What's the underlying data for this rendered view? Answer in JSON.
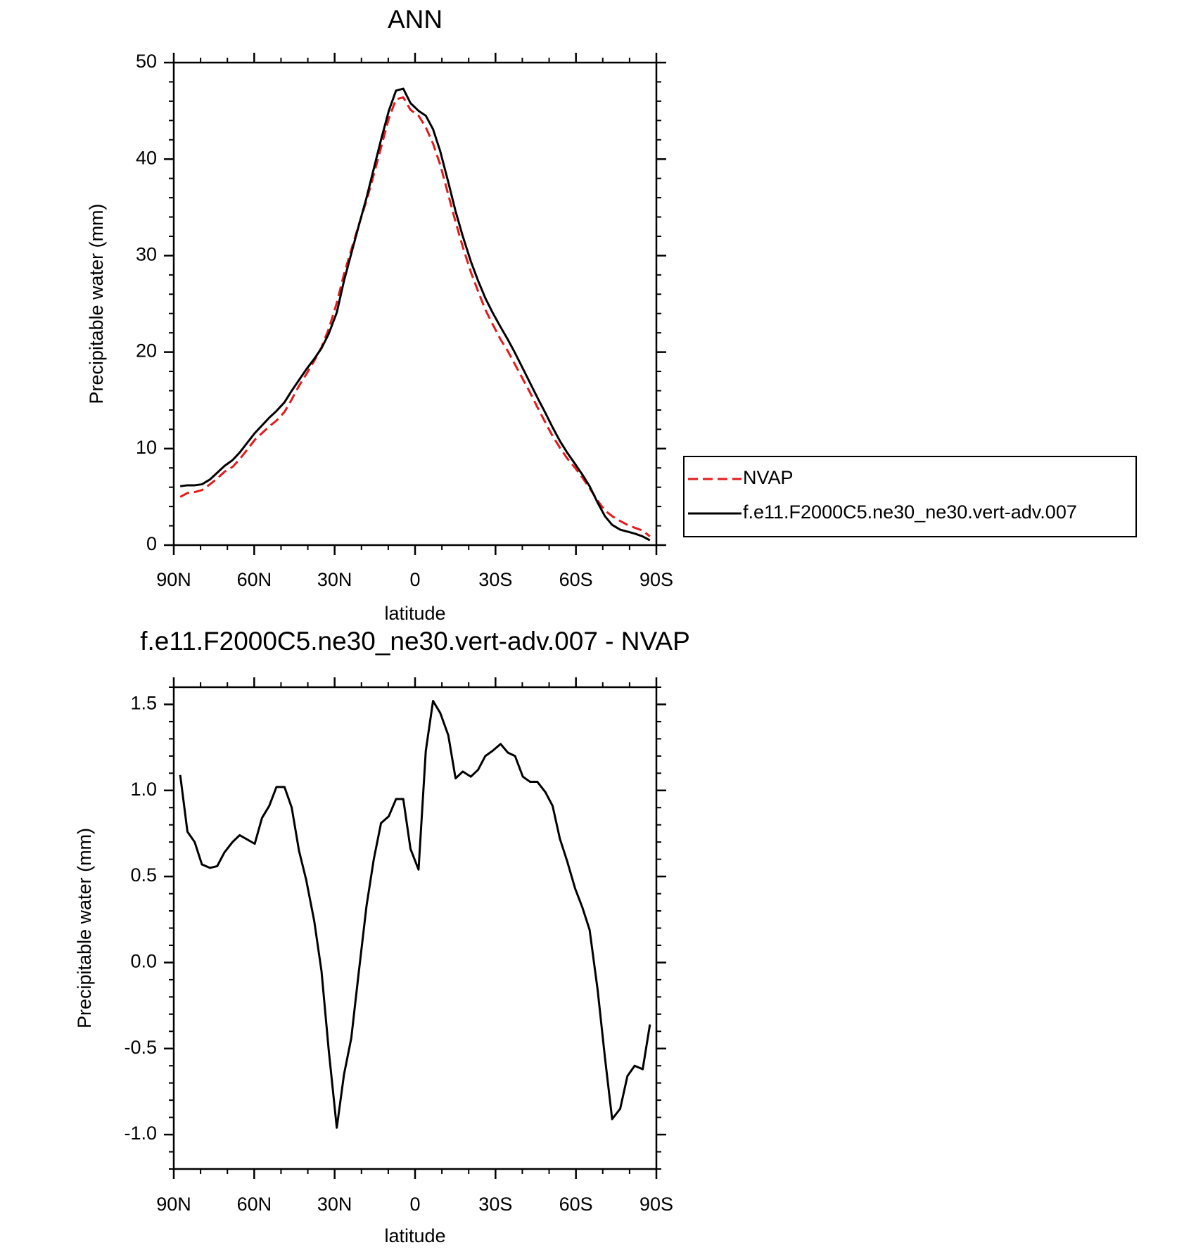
{
  "chart_data": [
    {
      "type": "line",
      "title": "ANN",
      "xlabel": "latitude",
      "ylabel": "Precipitable water (mm)",
      "x": [
        87.6,
        84.9,
        82.2,
        79.5,
        76.5,
        73.8,
        71.1,
        68.1,
        65.4,
        59.8,
        57.1,
        54.4,
        51.7,
        48.7,
        46.0,
        43.3,
        40.6,
        37.6,
        34.9,
        32.2,
        29.2,
        26.5,
        23.8,
        21.1,
        18.1,
        15.4,
        12.7,
        9.8,
        7.1,
        4.4,
        1.7,
        -1.3,
        -4.0,
        -6.7,
        -9.4,
        -12.4,
        -15.1,
        -17.8,
        -20.8,
        -23.5,
        -26.2,
        -28.9,
        -31.9,
        -34.6,
        -37.3,
        -40.2,
        -42.9,
        -45.6,
        -48.6,
        -51.3,
        -54.0,
        -56.7,
        -59.7,
        -62.4,
        -65.1,
        -68.1,
        -70.8,
        -73.5,
        -76.5,
        -79.2,
        -81.9,
        -84.9,
        -87.6
      ],
      "series": [
        {
          "name": "NVAP",
          "color": "#e41a1c",
          "dash": true,
          "values": [
            5.0,
            5.4,
            5.5,
            5.7,
            6.3,
            6.9,
            7.6,
            8.1,
            8.9,
            10.9,
            11.6,
            12.3,
            12.9,
            13.8,
            15.1,
            16.5,
            17.7,
            19.1,
            20.5,
            22.4,
            25.1,
            28.1,
            30.6,
            33.1,
            35.7,
            38.4,
            41.2,
            44.2,
            46.2,
            46.4,
            45.1,
            44.5,
            43.3,
            41.6,
            39.4,
            36.3,
            33.5,
            30.9,
            28.3,
            26.3,
            24.4,
            22.9,
            21.3,
            20.1,
            18.7,
            17.2,
            15.8,
            14.3,
            12.7,
            11.3,
            10.1,
            9.0,
            8.0,
            7.0,
            5.9,
            4.6,
            3.6,
            3.0,
            2.5,
            2.1,
            1.8,
            1.5,
            0.9
          ]
        },
        {
          "name": "f.e11.F2000C5.ne30_ne30.vert-adv.007",
          "color": "#000000",
          "dash": false,
          "values": [
            6.1,
            6.2,
            6.2,
            6.3,
            6.8,
            7.5,
            8.2,
            8.8,
            9.6,
            11.6,
            12.4,
            13.2,
            13.9,
            14.8,
            16.0,
            17.1,
            18.2,
            19.3,
            20.4,
            21.9,
            24.1,
            27.4,
            30.2,
            33.0,
            36.0,
            39.0,
            42.0,
            45.0,
            47.1,
            47.3,
            45.8,
            45.0,
            44.5,
            43.1,
            40.8,
            37.6,
            34.6,
            32.0,
            29.4,
            27.4,
            25.6,
            24.1,
            22.6,
            21.3,
            19.9,
            18.3,
            16.8,
            15.3,
            13.7,
            12.2,
            10.8,
            9.6,
            8.4,
            7.3,
            6.1,
            4.4,
            3.0,
            2.1,
            1.6,
            1.4,
            1.2,
            0.9,
            0.5
          ]
        }
      ],
      "xlim": [
        90,
        -90
      ],
      "xticks": [
        {
          "value": 90,
          "label": "90N"
        },
        {
          "value": 60,
          "label": "60N"
        },
        {
          "value": 30,
          "label": "30N"
        },
        0,
        {
          "value": -30,
          "label": "30S"
        },
        {
          "value": -60,
          "label": "60S"
        },
        {
          "value": -90,
          "label": "90S"
        }
      ],
      "ylim": [
        0,
        50
      ],
      "yticks": [
        0,
        10,
        20,
        30,
        40,
        50
      ],
      "legend": "right"
    },
    {
      "type": "line",
      "title": "f.e11.F2000C5.ne30_ne30.vert-adv.007 - NVAP",
      "xlabel": "latitude",
      "ylabel": "Precipitable water (mm)",
      "x": [
        87.6,
        84.9,
        82.2,
        79.5,
        76.5,
        73.8,
        71.1,
        68.1,
        65.4,
        59.8,
        57.1,
        54.4,
        51.7,
        48.7,
        46.0,
        43.3,
        40.6,
        37.6,
        34.9,
        32.2,
        29.2,
        26.5,
        23.8,
        21.1,
        18.1,
        15.4,
        12.7,
        9.8,
        7.1,
        4.4,
        1.7,
        -1.3,
        -4.0,
        -6.7,
        -9.4,
        -12.4,
        -15.1,
        -17.8,
        -20.8,
        -23.5,
        -26.2,
        -28.9,
        -31.9,
        -34.6,
        -37.3,
        -40.2,
        -42.9,
        -45.6,
        -48.6,
        -51.3,
        -54.0,
        -56.7,
        -59.7,
        -62.4,
        -65.1,
        -68.1,
        -70.8,
        -73.5,
        -76.5,
        -79.2,
        -81.9,
        -84.9,
        -87.6
      ],
      "values": [
        1.09,
        0.76,
        0.7,
        0.57,
        0.55,
        0.56,
        0.64,
        0.7,
        0.74,
        0.69,
        0.84,
        0.91,
        1.02,
        1.02,
        0.9,
        0.65,
        0.48,
        0.24,
        -0.05,
        -0.51,
        -0.96,
        -0.65,
        -0.44,
        -0.07,
        0.33,
        0.6,
        0.81,
        0.85,
        0.95,
        0.95,
        0.66,
        0.54,
        1.23,
        1.52,
        1.45,
        1.32,
        1.07,
        1.11,
        1.08,
        1.12,
        1.2,
        1.23,
        1.27,
        1.22,
        1.2,
        1.08,
        1.05,
        1.05,
        0.99,
        0.91,
        0.72,
        0.59,
        0.43,
        0.32,
        0.19,
        -0.16,
        -0.55,
        -0.91,
        -0.85,
        -0.66,
        -0.6,
        -0.62,
        -0.36
      ],
      "color": "#000000",
      "xlim": [
        90,
        -90
      ],
      "xticks": [
        {
          "value": 90,
          "label": "90N"
        },
        {
          "value": 60,
          "label": "60N"
        },
        {
          "value": 30,
          "label": "30N"
        },
        0,
        {
          "value": -30,
          "label": "30S"
        },
        {
          "value": -60,
          "label": "60S"
        },
        {
          "value": -90,
          "label": "90S"
        }
      ],
      "ylim": [
        -1.2,
        1.6
      ],
      "yticks": [
        {
          "value": -1,
          "label": "-1.0"
        },
        -0.5,
        {
          "value": 0,
          "label": "0.0"
        },
        0.5,
        {
          "value": 1,
          "label": "1.0"
        },
        1.5
      ]
    }
  ]
}
